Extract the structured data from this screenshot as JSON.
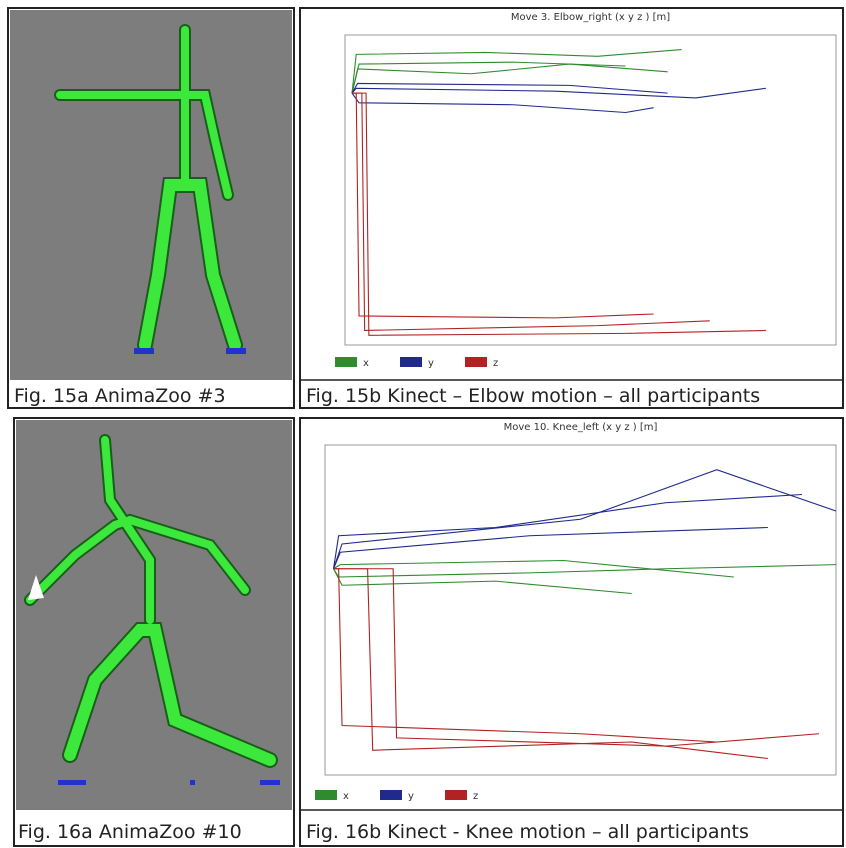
{
  "captions": [
    "Fig. 15a AnimaZoo #3",
    "Fig. 15b Kinect – Elbow motion – all participants",
    "Fig. 16a AnimaZoo #10",
    "Fig. 16b Kinect - Knee motion – all participants"
  ],
  "chart_data": [
    {
      "type": "line",
      "title": "Move 3. Elbow_right (x y z ) [m]",
      "xlim": [
        0,
        350
      ],
      "ylim": [
        -2.6,
        0.6
      ],
      "series": [
        {
          "name": "x",
          "color": "#2e8b2e",
          "traces": [
            {
              "x": [
                5,
                8,
                100,
                180,
                240
              ],
              "values": [
                0,
                0.4,
                0.42,
                0.38,
                0.45
              ]
            },
            {
              "x": [
                5,
                10,
                120,
                200
              ],
              "values": [
                0,
                0.3,
                0.32,
                0.28
              ]
            },
            {
              "x": [
                5,
                9,
                90,
                160,
                230
              ],
              "values": [
                0,
                0.25,
                0.2,
                0.3,
                0.22
              ]
            }
          ]
        },
        {
          "name": "y",
          "color": "#1f2a8c",
          "traces": [
            {
              "x": [
                5,
                8,
                150,
                250,
                300
              ],
              "values": [
                0,
                0.05,
                0.02,
                -0.05,
                0.05
              ]
            },
            {
              "x": [
                5,
                10,
                120,
                200,
                220
              ],
              "values": [
                0,
                -0.1,
                -0.12,
                -0.2,
                -0.15
              ]
            },
            {
              "x": [
                5,
                9,
                160,
                230
              ],
              "values": [
                0,
                0.1,
                0.08,
                0
              ]
            }
          ]
        },
        {
          "name": "z",
          "color": "#b22222",
          "traces": [
            {
              "x": [
                5,
                8,
                10,
                150,
                220
              ],
              "values": [
                0,
                0,
                -2.3,
                -2.32,
                -2.28
              ]
            },
            {
              "x": [
                5,
                12,
                14,
                180,
                260
              ],
              "values": [
                0,
                0,
                -2.45,
                -2.4,
                -2.35
              ]
            },
            {
              "x": [
                5,
                15,
                17,
                200,
                300
              ],
              "values": [
                0,
                0,
                -2.5,
                -2.48,
                -2.45
              ]
            }
          ]
        }
      ]
    },
    {
      "type": "line",
      "title": "Move 10. Knee_left (x y z ) [m]",
      "xlim": [
        0,
        300
      ],
      "ylim": [
        -2.5,
        1.5
      ],
      "series": [
        {
          "name": "x",
          "color": "#2e8b2e",
          "traces": [
            {
              "x": [
                5,
                8,
                120,
                200,
                300
              ],
              "values": [
                0,
                -0.1,
                -0.05,
                0,
                0.05
              ]
            },
            {
              "x": [
                5,
                10,
                100,
                180
              ],
              "values": [
                0,
                -0.2,
                -0.15,
                -0.3
              ]
            },
            {
              "x": [
                5,
                9,
                140,
                240
              ],
              "values": [
                0,
                0.05,
                0.1,
                -0.1
              ]
            }
          ]
        },
        {
          "name": "y",
          "color": "#1f2a8c",
          "traces": [
            {
              "x": [
                5,
                8,
                100,
                200,
                280
              ],
              "values": [
                0,
                0.4,
                0.5,
                0.8,
                0.9
              ]
            },
            {
              "x": [
                5,
                10,
                150,
                230,
                300
              ],
              "values": [
                0,
                0.3,
                0.6,
                1.2,
                0.7
              ]
            },
            {
              "x": [
                5,
                9,
                120,
                260
              ],
              "values": [
                0,
                0.2,
                0.4,
                0.5
              ]
            }
          ]
        },
        {
          "name": "z",
          "color": "#b22222",
          "traces": [
            {
              "x": [
                5,
                8,
                10,
                150,
                230
              ],
              "values": [
                0,
                0,
                -1.9,
                -2.0,
                -2.1
              ]
            },
            {
              "x": [
                5,
                25,
                28,
                180,
                260
              ],
              "values": [
                0,
                0,
                -2.2,
                -2.1,
                -2.3
              ]
            },
            {
              "x": [
                5,
                40,
                42,
                200,
                290
              ],
              "values": [
                0,
                0,
                -2.05,
                -2.15,
                -2.0
              ]
            }
          ]
        }
      ]
    }
  ]
}
